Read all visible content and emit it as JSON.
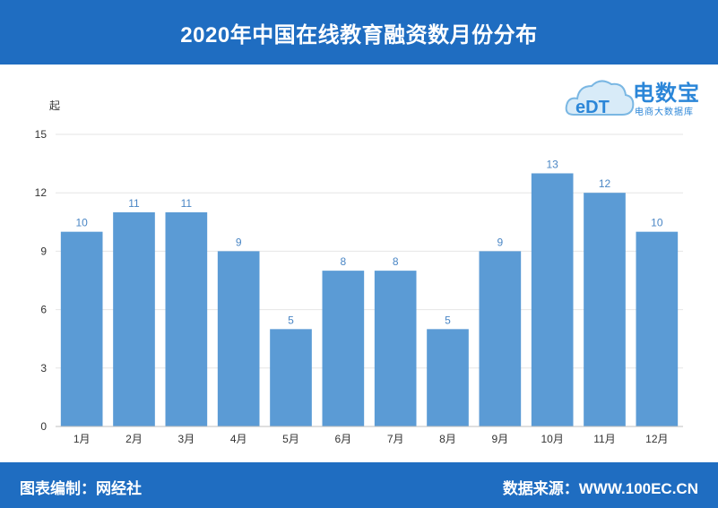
{
  "header": {
    "title": "2020年中国在线教育融资数月份分布"
  },
  "footer": {
    "left": "图表编制：网经社",
    "right": "数据来源：WWW.100EC.CN"
  },
  "logo": {
    "title": "电数宝",
    "subtitle": "电商大数据库",
    "icon": "cloud-edt-logo"
  },
  "colors": {
    "bar": "#5b9bd5",
    "band": "#1f6dc1",
    "label": "#4a86c5"
  },
  "chart_data": {
    "type": "bar",
    "ylabel": "起",
    "xlabel": "",
    "categories": [
      "1月",
      "2月",
      "3月",
      "4月",
      "5月",
      "6月",
      "7月",
      "8月",
      "9月",
      "10月",
      "11月",
      "12月"
    ],
    "values": [
      10,
      11,
      11,
      9,
      5,
      8,
      8,
      5,
      9,
      13,
      12,
      10
    ],
    "ylim": [
      0,
      15
    ],
    "yticks": [
      0,
      3,
      6,
      9,
      12,
      15
    ],
    "grid": true,
    "legend": "none"
  }
}
